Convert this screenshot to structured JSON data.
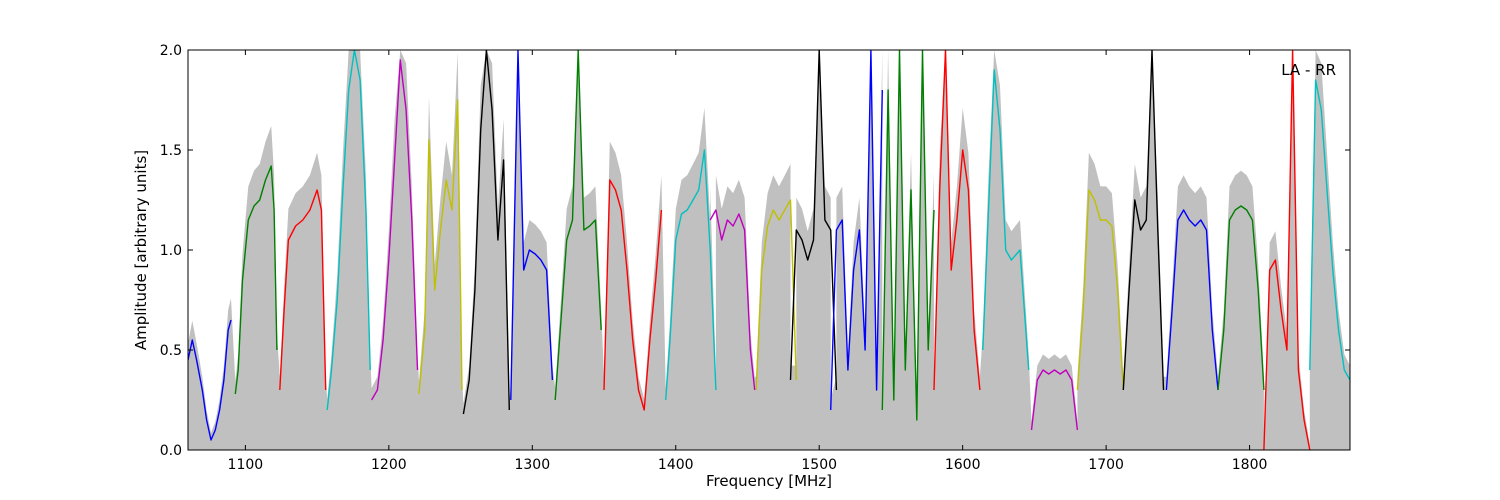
{
  "chart_data": {
    "type": "line",
    "title": "",
    "annotation": "LA - RR",
    "legend_position": "top-right",
    "xlabel": "Frequency [MHz]",
    "ylabel": "Amplitude [arbitrary units]",
    "xlim": [
      1060,
      1870
    ],
    "ylim": [
      0,
      2.0
    ],
    "xticks": [
      1100,
      1200,
      1300,
      1400,
      1500,
      1600,
      1700,
      1800
    ],
    "yticks": [
      0.0,
      0.5,
      1.0,
      1.5,
      2.0
    ],
    "xtick_labels": [
      "1100",
      "1200",
      "1300",
      "1400",
      "1500",
      "1600",
      "1700",
      "1800"
    ],
    "ytick_labels": [
      "0.0",
      "0.5",
      "1.0",
      "1.5",
      "2.0"
    ],
    "grid": false,
    "background_color": "#c0c0c0",
    "series": [
      {
        "color": "#0000ff",
        "x": [
          1060,
          1063,
          1066,
          1070,
          1073,
          1076,
          1079,
          1082,
          1085,
          1088,
          1090
        ],
        "y": [
          0.45,
          0.55,
          0.45,
          0.3,
          0.15,
          0.05,
          0.1,
          0.2,
          0.35,
          0.6,
          0.65
        ]
      },
      {
        "color": "#008000",
        "x": [
          1093,
          1095,
          1098,
          1102,
          1106,
          1110,
          1114,
          1118,
          1120,
          1122
        ],
        "y": [
          0.28,
          0.4,
          0.85,
          1.15,
          1.22,
          1.25,
          1.35,
          1.42,
          1.2,
          0.5
        ]
      },
      {
        "color": "#ff0000",
        "x": [
          1124,
          1127,
          1130,
          1135,
          1140,
          1145,
          1150,
          1153,
          1156
        ],
        "y": [
          0.3,
          0.7,
          1.05,
          1.12,
          1.15,
          1.2,
          1.3,
          1.2,
          0.3
        ]
      },
      {
        "color": "#00c0c0",
        "x": [
          1157,
          1160,
          1164,
          1168,
          1172,
          1176,
          1180,
          1184,
          1187
        ],
        "y": [
          0.2,
          0.4,
          0.75,
          1.3,
          1.8,
          2.0,
          1.85,
          1.2,
          0.4
        ]
      },
      {
        "color": "#c000c0",
        "x": [
          1188,
          1192,
          1196,
          1200,
          1204,
          1208,
          1212,
          1216,
          1220
        ],
        "y": [
          0.25,
          0.3,
          0.55,
          0.95,
          1.45,
          1.95,
          1.7,
          1.15,
          0.4
        ]
      },
      {
        "color": "#c0c000",
        "x": [
          1221,
          1225,
          1228,
          1232,
          1236,
          1240,
          1244,
          1248,
          1251
        ],
        "y": [
          0.28,
          0.6,
          1.55,
          0.8,
          1.1,
          1.35,
          1.2,
          1.75,
          0.3
        ]
      },
      {
        "color": "#000000",
        "x": [
          1252,
          1256,
          1260,
          1264,
          1268,
          1272,
          1276,
          1280,
          1284
        ],
        "y": [
          0.18,
          0.35,
          0.8,
          1.6,
          2.0,
          1.7,
          1.05,
          1.45,
          0.2
        ]
      },
      {
        "color": "#0000ff",
        "x": [
          1285,
          1290,
          1294,
          1298,
          1302,
          1306,
          1310,
          1314
        ],
        "y": [
          0.25,
          2.0,
          0.9,
          1.0,
          0.98,
          0.95,
          0.9,
          0.35
        ]
      },
      {
        "color": "#008000",
        "x": [
          1316,
          1320,
          1324,
          1328,
          1332,
          1336,
          1340,
          1344,
          1348
        ],
        "y": [
          0.25,
          0.65,
          1.05,
          1.15,
          2.0,
          1.1,
          1.12,
          1.15,
          0.6
        ]
      },
      {
        "color": "#ff0000",
        "x": [
          1350,
          1354,
          1358,
          1362,
          1366,
          1370,
          1374,
          1378,
          1382,
          1386,
          1390
        ],
        "y": [
          0.3,
          1.35,
          1.3,
          1.2,
          0.9,
          0.55,
          0.3,
          0.2,
          0.55,
          0.85,
          1.2
        ]
      },
      {
        "color": "#00c0c0",
        "x": [
          1393,
          1396,
          1400,
          1404,
          1408,
          1412,
          1416,
          1420,
          1424,
          1428
        ],
        "y": [
          0.25,
          0.55,
          1.05,
          1.18,
          1.2,
          1.25,
          1.3,
          1.5,
          1.0,
          0.3
        ]
      },
      {
        "color": "#c000c0",
        "x": [
          1424,
          1428,
          1432,
          1436,
          1440,
          1444,
          1448,
          1452,
          1455
        ],
        "y": [
          1.15,
          1.2,
          1.05,
          1.15,
          1.12,
          1.18,
          1.1,
          0.5,
          0.3
        ]
      },
      {
        "color": "#c0c000",
        "x": [
          1456,
          1460,
          1464,
          1468,
          1472,
          1476,
          1480,
          1484
        ],
        "y": [
          0.3,
          0.9,
          1.12,
          1.2,
          1.15,
          1.2,
          1.25,
          0.35
        ]
      },
      {
        "color": "#000000",
        "x": [
          1480,
          1484,
          1488,
          1492,
          1496,
          1500,
          1504,
          1508,
          1512
        ],
        "y": [
          0.35,
          1.1,
          1.05,
          0.95,
          1.05,
          2.0,
          1.15,
          1.1,
          0.3
        ]
      },
      {
        "color": "#0000ff",
        "x": [
          1508,
          1512,
          1516,
          1520,
          1524,
          1528,
          1532,
          1536,
          1540,
          1544
        ],
        "y": [
          0.2,
          1.1,
          1.15,
          0.4,
          0.9,
          1.1,
          0.5,
          2.0,
          0.3,
          1.8
        ]
      },
      {
        "color": "#008000",
        "x": [
          1544,
          1548,
          1552,
          1556,
          1560,
          1564,
          1568,
          1572,
          1576,
          1580
        ],
        "y": [
          0.2,
          1.8,
          0.25,
          2.0,
          0.4,
          1.3,
          0.15,
          2.0,
          0.5,
          1.2
        ]
      },
      {
        "color": "#ff0000",
        "x": [
          1580,
          1584,
          1588,
          1592,
          1596,
          1600,
          1604,
          1608,
          1612
        ],
        "y": [
          0.3,
          1.3,
          2.0,
          0.9,
          1.15,
          1.5,
          1.3,
          0.6,
          0.3
        ]
      },
      {
        "color": "#00c0c0",
        "x": [
          1614,
          1618,
          1622,
          1626,
          1630,
          1634,
          1640,
          1646
        ],
        "y": [
          0.5,
          1.2,
          1.9,
          1.6,
          1.0,
          0.95,
          1.0,
          0.4
        ]
      },
      {
        "color": "#c000c0",
        "x": [
          1648,
          1652,
          1656,
          1660,
          1664,
          1668,
          1672,
          1676,
          1680
        ],
        "y": [
          0.1,
          0.35,
          0.4,
          0.38,
          0.4,
          0.38,
          0.4,
          0.35,
          0.1
        ]
      },
      {
        "color": "#c0c000",
        "x": [
          1680,
          1684,
          1688,
          1692,
          1696,
          1700,
          1704,
          1708,
          1712
        ],
        "y": [
          0.3,
          0.7,
          1.3,
          1.25,
          1.15,
          1.15,
          1.12,
          0.8,
          0.3
        ]
      },
      {
        "color": "#000000",
        "x": [
          1712,
          1716,
          1720,
          1724,
          1728,
          1732,
          1736,
          1740
        ],
        "y": [
          0.3,
          0.8,
          1.25,
          1.1,
          1.15,
          2.0,
          1.1,
          0.3
        ]
      },
      {
        "color": "#0000ff",
        "x": [
          1742,
          1746,
          1750,
          1754,
          1758,
          1762,
          1766,
          1770,
          1774,
          1778
        ],
        "y": [
          0.3,
          0.7,
          1.15,
          1.2,
          1.15,
          1.12,
          1.15,
          1.1,
          0.6,
          0.3
        ]
      },
      {
        "color": "#008000",
        "x": [
          1778,
          1782,
          1786,
          1790,
          1794,
          1798,
          1802,
          1806,
          1810
        ],
        "y": [
          0.3,
          0.6,
          1.15,
          1.2,
          1.22,
          1.2,
          1.15,
          0.8,
          0.3
        ]
      },
      {
        "color": "#ff0000",
        "x": [
          1810,
          1814,
          1818,
          1822,
          1826,
          1830,
          1834,
          1838,
          1842
        ],
        "y": [
          0.0,
          0.9,
          0.95,
          0.7,
          0.5,
          2.0,
          0.4,
          0.15,
          0.0
        ]
      },
      {
        "color": "#00c0c0",
        "x": [
          1842,
          1846,
          1850,
          1854,
          1858,
          1862,
          1866,
          1870
        ],
        "y": [
          0.4,
          1.85,
          1.7,
          1.3,
          0.9,
          0.6,
          0.4,
          0.35
        ]
      }
    ]
  }
}
